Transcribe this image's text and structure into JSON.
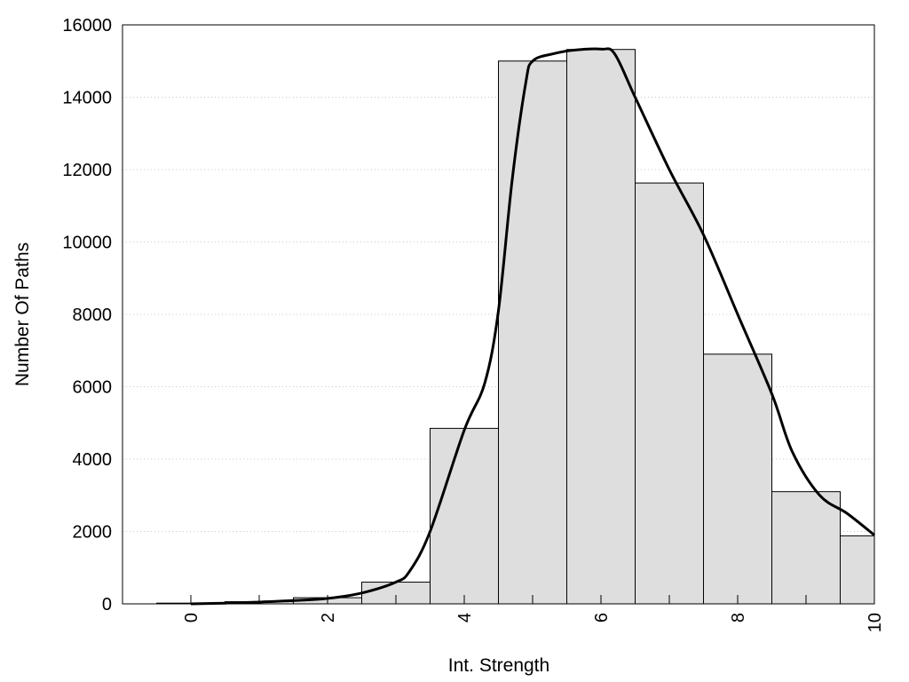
{
  "chart_data": {
    "type": "bar",
    "title": "",
    "xlabel": "Int. Strength",
    "ylabel": "Number Of Paths",
    "xlim": [
      -1,
      10
    ],
    "ylim": [
      0,
      16000
    ],
    "grid": "horizontal dotted",
    "legend": "none",
    "colors": {
      "bar_fill": "#dedede",
      "bar_stroke": "#000000",
      "curve": "#000000",
      "grid": "#c8c8c8"
    },
    "x_ticks": [
      "0",
      "2",
      "4",
      "6",
      "8",
      "10"
    ],
    "y_ticks": [
      "0",
      "2000",
      "4000",
      "6000",
      "8000",
      "10000",
      "12000",
      "14000",
      "16000"
    ],
    "bars": [
      {
        "x": 0,
        "value": 20
      },
      {
        "x": 1,
        "value": 60
      },
      {
        "x": 2,
        "value": 170
      },
      {
        "x": 3,
        "value": 600
      },
      {
        "x": 4,
        "value": 4850
      },
      {
        "x": 5,
        "value": 15000
      },
      {
        "x": 6,
        "value": 15320
      },
      {
        "x": 7,
        "value": 11630
      },
      {
        "x": 8,
        "value": 6900
      },
      {
        "x": 9,
        "value": 3100
      },
      {
        "x": 10,
        "value": 1880
      }
    ],
    "curve": {
      "x": [
        0,
        0.5,
        1,
        1.5,
        2,
        2.5,
        3,
        3.2,
        3.5,
        4,
        4.3,
        4.5,
        4.7,
        4.9,
        5,
        5.3,
        5.6,
        6,
        6.2,
        6.5,
        7,
        7.5,
        8,
        8.5,
        8.8,
        9.2,
        9.6,
        10
      ],
      "y": [
        0,
        20,
        50,
        90,
        150,
        300,
        600,
        900,
        2000,
        4800,
        6100,
        8100,
        11700,
        14400,
        15000,
        15200,
        15300,
        15330,
        15200,
        14000,
        12000,
        10200,
        8000,
        5800,
        4200,
        3000,
        2500,
        1900
      ]
    }
  }
}
